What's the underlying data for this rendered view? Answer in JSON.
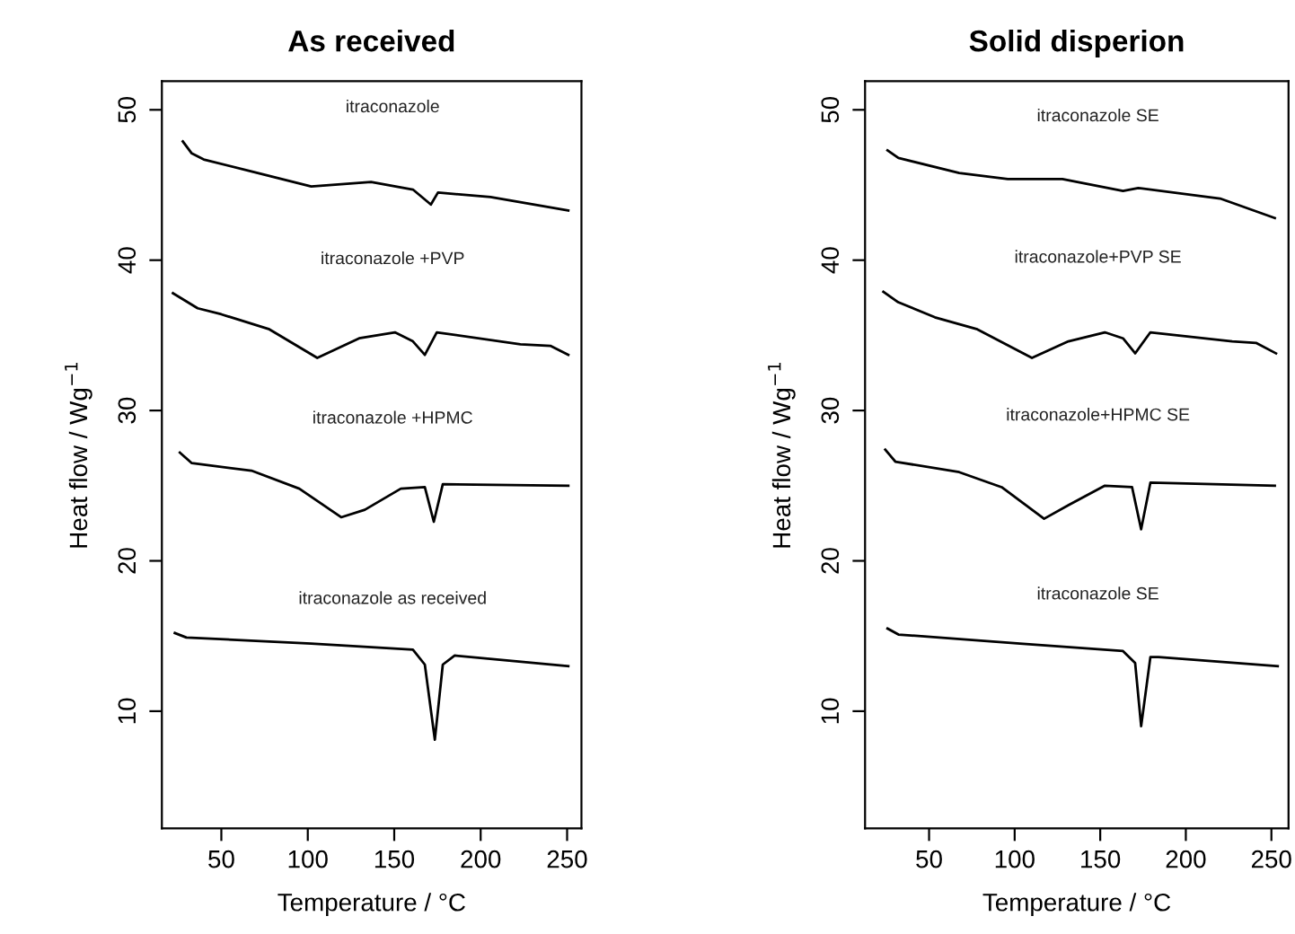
{
  "chart_data": [
    {
      "type": "line",
      "title": "As received",
      "xlabel": "Temperature / °C",
      "ylabel": "Heat flow / Wg$^{−1}$",
      "xlim": [
        15.6,
        258.3
      ],
      "ylim": [
        2.2,
        51.9
      ],
      "xticks": [
        50,
        100,
        150,
        200,
        250
      ],
      "yticks": [
        10,
        20,
        30,
        40,
        50
      ],
      "grid": false,
      "legend": false,
      "series": [
        {
          "color": "#000000",
          "x": [
            27.7,
            32.9,
            39.8,
            67.4,
            102,
            136.6,
            160.8,
            171.2,
            175.3,
            205.7,
            250.7
          ],
          "values": [
            47.9,
            47.1,
            46.7,
            45.9,
            44.9,
            45.2,
            44.7,
            43.7,
            44.5,
            44.2,
            43.3
          ]
        },
        {
          "color": "#000000",
          "x": [
            22,
            36.3,
            50,
            77.8,
            105.5,
            129.7,
            150.4,
            160.8,
            167.7,
            174.6,
            223,
            240.3,
            250.7
          ],
          "values": [
            37.8,
            36.8,
            36.4,
            35.4,
            33.5,
            34.8,
            35.2,
            34.6,
            33.7,
            35.2,
            34.4,
            34.3,
            33.7
          ]
        },
        {
          "color": "#000000",
          "x": [
            26,
            32.9,
            67.4,
            95.1,
            119.3,
            133,
            153.8,
            167.7,
            172.9,
            178.1,
            250.7
          ],
          "values": [
            27.2,
            26.5,
            26.0,
            24.8,
            22.9,
            23.4,
            24.8,
            24.9,
            22.6,
            25.1,
            25.0
          ]
        },
        {
          "color": "#000000",
          "x": [
            23.1,
            29.8,
            102,
            160.8,
            167.7,
            173.5,
            178.1,
            185,
            250.7
          ],
          "values": [
            15.2,
            14.9,
            14.5,
            14.1,
            13.1,
            8.1,
            13.1,
            13.7,
            13.0
          ]
        }
      ],
      "annotations": [
        "itraconazole",
        "itraconazole +PVP",
        "itraconazole +HPMC",
        "itraconazole as received"
      ]
    },
    {
      "type": "line",
      "title": "Solid disperion",
      "xlabel": "Temperature / °C",
      "ylabel": "Heat flow / Wg$^{−1}$",
      "xlim": [
        12.6,
        260
      ],
      "ylim": [
        2.2,
        51.9
      ],
      "xticks": [
        50,
        100,
        150,
        200,
        250
      ],
      "yticks": [
        10,
        20,
        30,
        40,
        50
      ],
      "grid": false,
      "legend": false,
      "series": [
        {
          "color": "#000000",
          "x": [
            25.7,
            32.1,
            67.6,
            96,
            127.9,
            163.3,
            172.2,
            220,
            252
          ],
          "values": [
            47.3,
            46.8,
            45.8,
            45.4,
            45.4,
            44.6,
            44.8,
            44.1,
            42.8
          ]
        },
        {
          "color": "#000000",
          "x": [
            23.3,
            32,
            53.4,
            78.2,
            110.1,
            131.4,
            152.7,
            163.3,
            170.4,
            179.3,
            227.1,
            241,
            252.7
          ],
          "values": [
            37.9,
            37.2,
            36.2,
            35.4,
            33.5,
            34.6,
            35.2,
            34.8,
            33.8,
            35.2,
            34.6,
            34.5,
            33.8
          ]
        },
        {
          "color": "#000000",
          "x": [
            24.4,
            30.3,
            67.6,
            92.4,
            117.2,
            131.4,
            152.7,
            168.6,
            173.9,
            179.3,
            252
          ],
          "values": [
            27.4,
            26.6,
            25.9,
            24.9,
            22.8,
            23.7,
            25.0,
            24.9,
            22.1,
            25.2,
            25.0
          ]
        },
        {
          "color": "#000000",
          "x": [
            25.7,
            32.1,
            103.1,
            163.3,
            170.4,
            173.9,
            179.3,
            184,
            253.7
          ],
          "values": [
            15.5,
            15.1,
            14.5,
            14.0,
            13.2,
            9.0,
            13.6,
            13.6,
            13.0
          ]
        }
      ],
      "annotations": [
        "itraconazole SE",
        "itraconazole+PVP SE",
        "itraconazole+HPMC SE",
        "itraconazole SE"
      ]
    }
  ]
}
